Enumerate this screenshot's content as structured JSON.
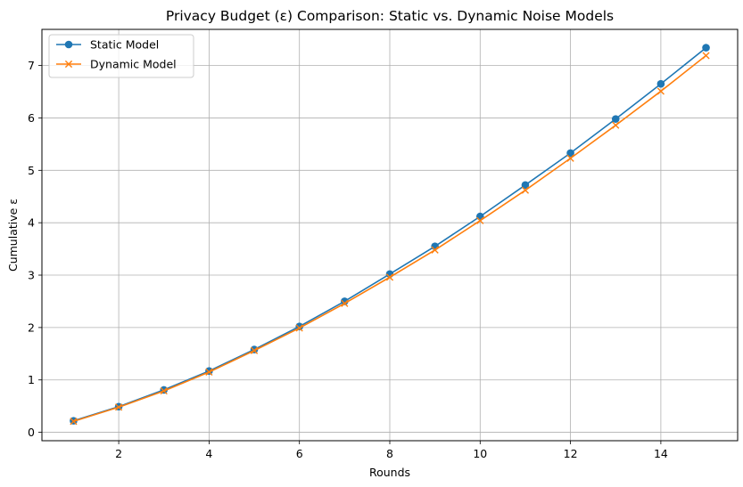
{
  "chart_data": {
    "type": "line",
    "title": "Privacy Budget (ε) Comparison: Static vs. Dynamic Noise Models",
    "xlabel": "Rounds",
    "ylabel": "Cumulative ε",
    "xlim": [
      0.3,
      15.7
    ],
    "ylim": [
      -0.16,
      7.69
    ],
    "xticks": [
      2,
      4,
      6,
      8,
      10,
      12,
      14
    ],
    "yticks": [
      0,
      1,
      2,
      3,
      4,
      5,
      6,
      7
    ],
    "grid": true,
    "legend": "top-left",
    "x": [
      1,
      2,
      3,
      4,
      5,
      6,
      7,
      8,
      9,
      10,
      11,
      12,
      13,
      14,
      15
    ],
    "series": [
      {
        "name": "Static Model",
        "color": "#1f77b4",
        "marker": "circle",
        "values": [
          0.22,
          0.49,
          0.81,
          1.17,
          1.58,
          2.02,
          2.5,
          3.02,
          3.55,
          4.12,
          4.72,
          5.33,
          5.98,
          6.65,
          7.34
        ]
      },
      {
        "name": "Dynamic Model",
        "color": "#ff7f0e",
        "marker": "x",
        "values": [
          0.21,
          0.48,
          0.79,
          1.15,
          1.56,
          1.99,
          2.46,
          2.96,
          3.48,
          4.04,
          4.62,
          5.23,
          5.86,
          6.51,
          7.19
        ]
      }
    ]
  }
}
